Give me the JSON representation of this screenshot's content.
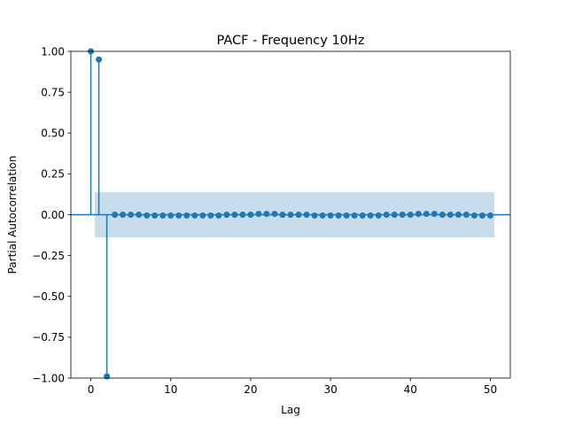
{
  "chart_data": {
    "type": "stem",
    "title": "PACF - Frequency 10Hz",
    "xlabel": "Lag",
    "ylabel": "Partial Autocorrelation",
    "xlim": [
      -2.5,
      52.5
    ],
    "ylim": [
      -1.0,
      1.0
    ],
    "xticks": [
      0,
      10,
      20,
      30,
      40,
      50
    ],
    "xtick_labels": [
      "0",
      "10",
      "20",
      "30",
      "40",
      "50"
    ],
    "yticks": [
      -1.0,
      -0.75,
      -0.5,
      -0.25,
      0.0,
      0.25,
      0.5,
      0.75,
      1.0
    ],
    "ytick_labels": [
      "−1.00",
      "−0.75",
      "−0.50",
      "−0.25",
      "0.00",
      "0.25",
      "0.50",
      "0.75",
      "1.00"
    ],
    "grid": false,
    "confidence_band": {
      "x_range": [
        0.5,
        50.5
      ],
      "lower": -0.139,
      "upper": 0.139
    },
    "series": [
      {
        "x": [
          0,
          1,
          2,
          3,
          4,
          5,
          6,
          7,
          8,
          9,
          10,
          11,
          12,
          13,
          14,
          15,
          16,
          17,
          18,
          19,
          20,
          21,
          22,
          23,
          24,
          25,
          26,
          27,
          28,
          29,
          30,
          31,
          32,
          33,
          34,
          35,
          36,
          37,
          38,
          39,
          40,
          41,
          42,
          43,
          44,
          45,
          46,
          47,
          48,
          49,
          50
        ],
        "values": [
          1.0,
          0.95,
          -0.99,
          0.0,
          0.0,
          0.0,
          0.0,
          -0.005,
          -0.005,
          -0.005,
          -0.005,
          -0.005,
          -0.005,
          -0.005,
          -0.005,
          -0.005,
          -0.005,
          0.0,
          0.0,
          0.0,
          0.0,
          0.005,
          0.005,
          0.005,
          0.0,
          0.0,
          0.0,
          0.0,
          -0.005,
          -0.005,
          -0.005,
          -0.005,
          -0.005,
          -0.005,
          -0.005,
          -0.005,
          -0.005,
          0.0,
          0.0,
          0.0,
          0.0,
          0.005,
          0.005,
          0.005,
          0.0,
          0.0,
          0.0,
          0.0,
          -0.005,
          -0.005,
          -0.005
        ]
      }
    ],
    "colors": {
      "stem": "#1f77b4",
      "band": "#1f77b4",
      "axis": "#000000"
    }
  }
}
